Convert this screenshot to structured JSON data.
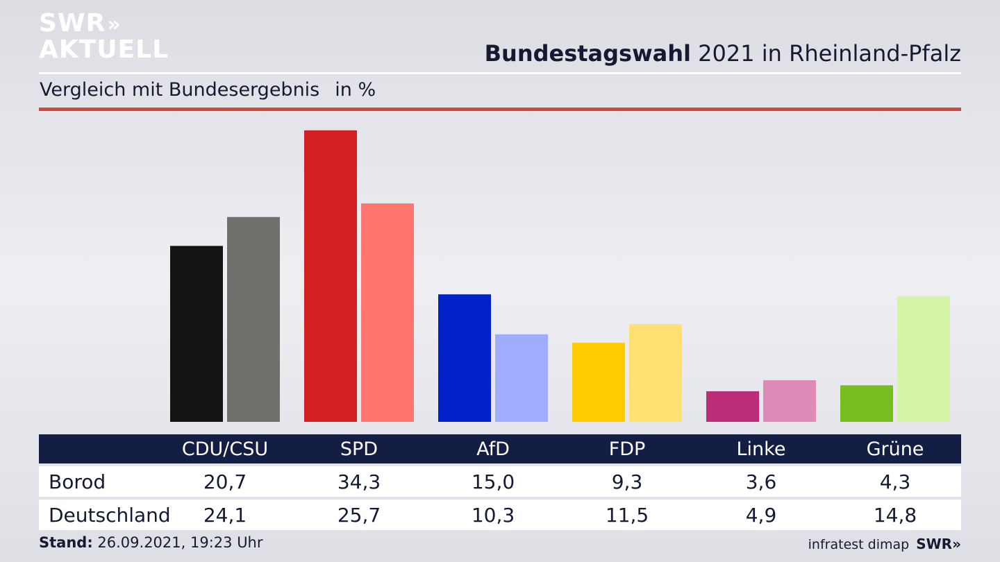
{
  "brand": {
    "line1": "SWR",
    "line1_arrows": "»",
    "line2": "AKTUELL",
    "footer_logo": "SWR»"
  },
  "header": {
    "title_bold": "Bundestagswahl",
    "title_rest": "2021 in Rheinland-Pfalz"
  },
  "subtitle": {
    "text": "Vergleich mit Bundesergebnis",
    "unit": "in %"
  },
  "footer": {
    "stand_label": "Stand:",
    "stand_value": "26.09.2021, 19:23 Uhr",
    "source": "infratest dimap"
  },
  "chart_data": {
    "type": "bar",
    "categories": [
      "CDU/CSU",
      "SPD",
      "AfD",
      "FDP",
      "Linke",
      "Grüne"
    ],
    "series": [
      {
        "name": "Borod",
        "values": [
          20.7,
          34.3,
          15.0,
          9.3,
          3.6,
          4.3
        ],
        "colors": [
          "#141414",
          "#d42020",
          "#0022c8",
          "#ffcc00",
          "#be2d78",
          "#78be20"
        ]
      },
      {
        "name": "Deutschland",
        "values": [
          24.1,
          25.7,
          10.3,
          11.5,
          4.9,
          14.8
        ],
        "colors": [
          "#72706d",
          "#ff7570",
          "#a0acff",
          "#ffe070",
          "#e08ab8",
          "#d4f5a8"
        ]
      }
    ],
    "display_values": [
      [
        "20,7",
        "34,3",
        "15,0",
        "9,3",
        "3,6",
        "4,3"
      ],
      [
        "24,1",
        "25,7",
        "10,3",
        "11,5",
        "4,9",
        "14,8"
      ]
    ]
  }
}
